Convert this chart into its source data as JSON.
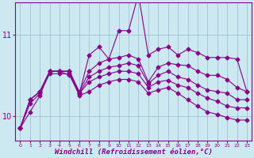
{
  "title": "",
  "xlabel": "Windchill (Refroidissement éolien,°C)",
  "ylabel": "",
  "background_color": "#cce8f0",
  "line_color": "#880088",
  "grid_color": "#99bbcc",
  "x": [
    0,
    1,
    2,
    3,
    4,
    5,
    6,
    7,
    8,
    9,
    10,
    11,
    12,
    13,
    14,
    15,
    16,
    17,
    18,
    19,
    20,
    21,
    22,
    23
  ],
  "series": [
    [
      9.85,
      10.05,
      10.25,
      10.55,
      10.55,
      10.5,
      10.27,
      10.75,
      10.85,
      10.7,
      11.05,
      11.05,
      11.5,
      10.75,
      10.82,
      10.85,
      10.75,
      10.82,
      10.78,
      10.72,
      10.72,
      10.72,
      10.7,
      10.3
    ],
    [
      9.85,
      10.2,
      10.3,
      10.55,
      10.55,
      10.55,
      10.3,
      10.55,
      10.65,
      10.7,
      10.72,
      10.75,
      10.7,
      10.42,
      10.6,
      10.65,
      10.63,
      10.62,
      10.55,
      10.5,
      10.5,
      10.45,
      10.35,
      10.3
    ],
    [
      9.85,
      10.2,
      10.3,
      10.55,
      10.55,
      10.55,
      10.28,
      10.48,
      10.55,
      10.6,
      10.62,
      10.65,
      10.62,
      10.4,
      10.5,
      10.55,
      10.48,
      10.45,
      10.38,
      10.32,
      10.3,
      10.28,
      10.2,
      10.2
    ],
    [
      9.85,
      10.2,
      10.3,
      10.55,
      10.55,
      10.55,
      10.28,
      10.42,
      10.48,
      10.52,
      10.55,
      10.55,
      10.52,
      10.35,
      10.42,
      10.44,
      10.38,
      10.35,
      10.28,
      10.22,
      10.18,
      10.12,
      10.1,
      10.1
    ],
    [
      9.85,
      10.15,
      10.28,
      10.52,
      10.52,
      10.52,
      10.25,
      10.3,
      10.38,
      10.42,
      10.45,
      10.45,
      10.42,
      10.28,
      10.32,
      10.35,
      10.28,
      10.2,
      10.12,
      10.05,
      10.02,
      9.98,
      9.95,
      9.95
    ]
  ],
  "ylim": [
    9.7,
    11.4
  ],
  "yticks": [
    10,
    11
  ],
  "xticks": [
    0,
    1,
    2,
    3,
    4,
    5,
    6,
    7,
    8,
    9,
    10,
    11,
    12,
    13,
    14,
    15,
    16,
    17,
    18,
    19,
    20,
    21,
    22,
    23
  ],
  "marker": "D",
  "markersize": 2.5,
  "linewidth": 0.8
}
